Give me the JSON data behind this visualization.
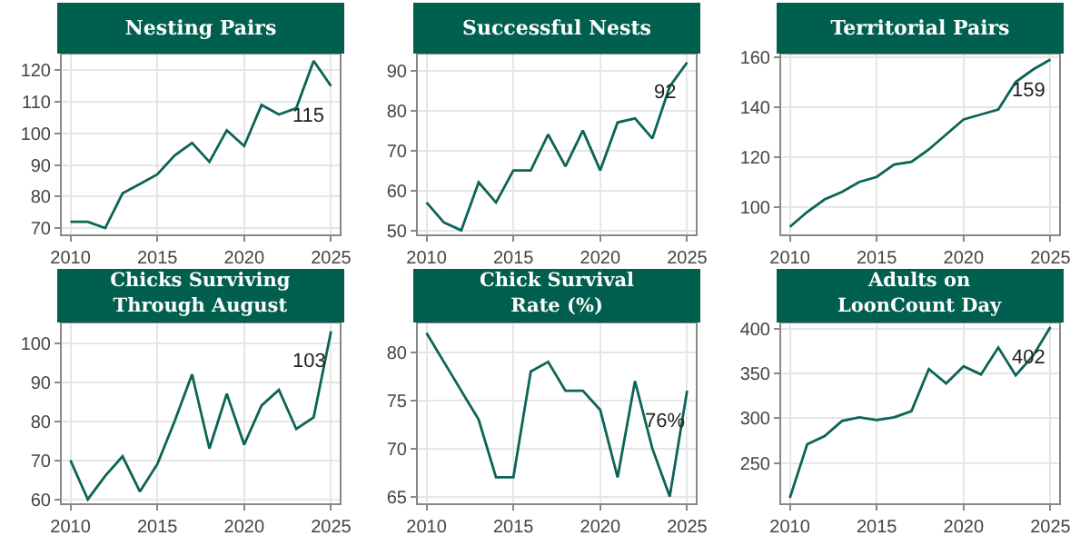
{
  "chart_data": [
    {
      "type": "line",
      "title": "Nesting Pairs",
      "x": [
        2010,
        2011,
        2012,
        2013,
        2014,
        2015,
        2016,
        2017,
        2018,
        2019,
        2020,
        2021,
        2022,
        2023,
        2024,
        2025
      ],
      "series": [
        {
          "color": "#0b6456",
          "values": [
            72,
            72,
            70,
            81,
            84,
            87,
            93,
            97,
            91,
            101,
            96,
            109,
            106,
            108,
            123,
            115
          ],
          "value_labels": [
            null,
            null,
            null,
            null,
            null,
            null,
            null,
            null,
            null,
            null,
            null,
            null,
            null,
            null,
            null,
            "115"
          ]
        }
      ],
      "xlim": [
        2009.5,
        2025.5
      ],
      "xticks": [
        2010,
        2015,
        2020,
        2025
      ],
      "ylim": [
        68,
        125
      ],
      "yticks": [
        70,
        80,
        90,
        100,
        110,
        120
      ],
      "grid": true
    },
    {
      "type": "line",
      "title": "Successful Nests",
      "x": [
        2010,
        2011,
        2012,
        2013,
        2014,
        2015,
        2016,
        2017,
        2018,
        2019,
        2020,
        2021,
        2022,
        2023,
        2024,
        2025
      ],
      "series": [
        {
          "color": "#0b6456",
          "values": [
            57,
            52,
            50,
            62,
            57,
            65,
            65,
            74,
            66,
            75,
            65,
            77,
            78,
            73,
            86,
            92
          ],
          "value_labels": [
            null,
            null,
            null,
            null,
            null,
            null,
            null,
            null,
            null,
            null,
            null,
            null,
            null,
            null,
            null,
            "92"
          ]
        }
      ],
      "xlim": [
        2009.5,
        2025.5
      ],
      "xticks": [
        2010,
        2015,
        2020,
        2025
      ],
      "ylim": [
        49,
        94
      ],
      "yticks": [
        50,
        60,
        70,
        80,
        90
      ],
      "grid": true
    },
    {
      "type": "line",
      "title": "Territorial Pairs",
      "x": [
        2010,
        2011,
        2012,
        2013,
        2014,
        2015,
        2016,
        2017,
        2018,
        2019,
        2020,
        2021,
        2022,
        2023,
        2024,
        2025
      ],
      "series": [
        {
          "color": "#0b6456",
          "values": [
            92,
            98,
            103,
            106,
            110,
            112,
            117,
            118,
            123,
            129,
            135,
            137,
            139,
            150,
            155,
            159
          ],
          "value_labels": [
            null,
            null,
            null,
            null,
            null,
            null,
            null,
            null,
            null,
            null,
            null,
            null,
            null,
            null,
            null,
            "159"
          ]
        }
      ],
      "xlim": [
        2009.5,
        2025.5
      ],
      "xticks": [
        2010,
        2015,
        2020,
        2025
      ],
      "ylim": [
        89,
        161
      ],
      "yticks": [
        100,
        120,
        140,
        160
      ],
      "grid": true
    },
    {
      "type": "line",
      "title": "Chicks Surviving Through August",
      "x": [
        2010,
        2011,
        2012,
        2013,
        2014,
        2015,
        2016,
        2017,
        2018,
        2019,
        2020,
        2021,
        2022,
        2023,
        2024,
        2025
      ],
      "series": [
        {
          "color": "#0b6456",
          "values": [
            70,
            60,
            66,
            71,
            62,
            69,
            80,
            92,
            73,
            87,
            74,
            84,
            88,
            78,
            81,
            103
          ],
          "value_labels": [
            null,
            null,
            null,
            null,
            null,
            null,
            null,
            null,
            null,
            null,
            null,
            null,
            null,
            null,
            null,
            "103"
          ]
        }
      ],
      "xlim": [
        2009.5,
        2025.5
      ],
      "xticks": [
        2010,
        2015,
        2020,
        2025
      ],
      "ylim": [
        59,
        105
      ],
      "yticks": [
        60,
        70,
        80,
        90,
        100
      ],
      "grid": true
    },
    {
      "type": "line",
      "title": "Chick Survival Rate (%)",
      "x": [
        2010,
        2011,
        2012,
        2013,
        2014,
        2015,
        2016,
        2017,
        2018,
        2019,
        2020,
        2021,
        2022,
        2023,
        2024,
        2025
      ],
      "series": [
        {
          "color": "#0b6456",
          "values": [
            82,
            79,
            76,
            73,
            67,
            67,
            78,
            79,
            76,
            76,
            74,
            67,
            77,
            70,
            65,
            76
          ],
          "value_labels": [
            null,
            null,
            null,
            null,
            null,
            null,
            null,
            null,
            null,
            null,
            null,
            null,
            null,
            null,
            null,
            "76%"
          ]
        }
      ],
      "xlim": [
        2009.5,
        2025.5
      ],
      "xticks": [
        2010,
        2015,
        2020,
        2025
      ],
      "ylim": [
        64.3,
        83
      ],
      "yticks": [
        65,
        70,
        75,
        80
      ],
      "grid": true
    },
    {
      "type": "line",
      "title": "Adults on LoonCount Day",
      "x": [
        2010,
        2011,
        2012,
        2013,
        2014,
        2015,
        2016,
        2017,
        2018,
        2019,
        2020,
        2021,
        2022,
        2023,
        2024,
        2025
      ],
      "series": [
        {
          "color": "#0b6456",
          "values": [
            211,
            271,
            280,
            297,
            301,
            298,
            301,
            308,
            355,
            339,
            358,
            349,
            379,
            348,
            370,
            402
          ],
          "value_labels": [
            null,
            null,
            null,
            null,
            null,
            null,
            null,
            null,
            null,
            null,
            null,
            null,
            null,
            null,
            null,
            "402"
          ]
        }
      ],
      "xlim": [
        2009.5,
        2025.5
      ],
      "xticks": [
        2010,
        2015,
        2020,
        2025
      ],
      "ylim": [
        205,
        406
      ],
      "yticks": [
        250,
        300,
        350,
        400
      ],
      "grid": true
    }
  ]
}
